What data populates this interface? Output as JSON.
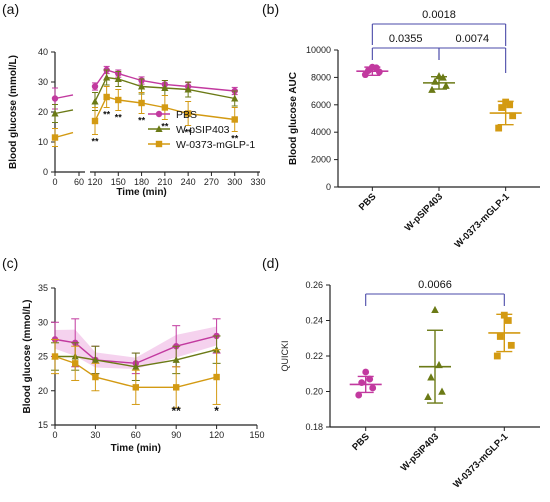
{
  "colors": {
    "pbs": "#c2399f",
    "pbs_shade": "#f2c3e8",
    "psip": "#6b7a16",
    "glp": "#d39a12",
    "bracket": "#4a4aa8",
    "axis": "#222222"
  },
  "panels": {
    "a": "(a)",
    "b": "(b)",
    "c": "(c)",
    "d": "(d)"
  },
  "chart_data": [
    {
      "id": "a",
      "type": "line",
      "title": "",
      "xlabel": "Time (min)",
      "ylabel": "Blood glucose (mmol/L)",
      "ylim": [
        0,
        40
      ],
      "yticks": [
        "0",
        "10",
        "20",
        "30",
        "40"
      ],
      "xticks_left": [
        "0",
        "60"
      ],
      "xticks_right": [
        "120",
        "150",
        "180",
        "210",
        "240",
        "270",
        "300",
        "330"
      ],
      "x_break": true,
      "series": [
        {
          "name": "PBS",
          "color": "#c2399f",
          "marker": "circle",
          "x": [
            0,
            120,
            135,
            150,
            180,
            210,
            240,
            300
          ],
          "y": [
            24.5,
            28.5,
            34,
            32.8,
            30.5,
            29.2,
            28.5,
            27
          ],
          "err": [
            3.5,
            1.2,
            1.2,
            1.2,
            1.2,
            1.3,
            1.3,
            1.2
          ]
        },
        {
          "name": "W-pSIP403",
          "color": "#6b7a16",
          "marker": "triangle",
          "x": [
            0,
            120,
            135,
            150,
            180,
            210,
            240,
            300
          ],
          "y": [
            19.5,
            23.5,
            31.5,
            31,
            28.5,
            28,
            27.5,
            24.5
          ],
          "err": [
            3,
            3,
            2.5,
            2.5,
            2.5,
            2.5,
            2.5,
            2.5
          ]
        },
        {
          "name": "W-0373-mGLP-1",
          "color": "#d39a12",
          "marker": "square",
          "x": [
            0,
            120,
            135,
            150,
            180,
            210,
            240,
            300
          ],
          "y": [
            11.5,
            17,
            25,
            24,
            23,
            21.5,
            19.5,
            17.5
          ],
          "err": [
            3,
            4.5,
            3.5,
            3.5,
            3.5,
            4,
            4,
            4
          ]
        }
      ],
      "annotations": [
        {
          "x": 120,
          "text": "**"
        },
        {
          "x": 135,
          "text": "**"
        },
        {
          "x": 150,
          "text": "**"
        },
        {
          "x": 180,
          "text": "**"
        },
        {
          "x": 210,
          "text": "**"
        },
        {
          "x": 240,
          "text": "**"
        },
        {
          "x": 300,
          "text": "**"
        }
      ]
    },
    {
      "id": "b",
      "type": "scatter",
      "title": "",
      "xlabel": "",
      "ylabel": "Blood glucose AUC",
      "ylim": [
        0,
        10000
      ],
      "yticks": [
        "0",
        "2000",
        "4000",
        "6000",
        "8000",
        "10000"
      ],
      "categories": [
        "PBS",
        "W-pSIP403",
        "W-0373-mGLP-1"
      ],
      "means": [
        8450,
        7600,
        5400
      ],
      "sd": [
        300,
        450,
        850
      ],
      "points": [
        [
          8200,
          8400,
          8500,
          8700,
          8750
        ],
        [
          7100,
          7400,
          7700,
          8000,
          8100
        ],
        [
          4300,
          5200,
          5800,
          6000,
          6200
        ]
      ],
      "brackets": [
        {
          "from": 0,
          "to": 2,
          "label": "0.0018"
        },
        {
          "from": 0,
          "to": 1,
          "label": "0.0355"
        },
        {
          "from": 1,
          "to": 2,
          "label": "0.0074"
        }
      ]
    },
    {
      "id": "c",
      "type": "line",
      "title": "",
      "xlabel": "Time (min)",
      "ylabel": "Blood glucose (mmol/L)",
      "ylim": [
        15,
        35
      ],
      "yticks": [
        "15",
        "20",
        "25",
        "30",
        "35"
      ],
      "xticks": [
        "0",
        "30",
        "60",
        "90",
        "120",
        "150"
      ],
      "series": [
        {
          "name": "PBS",
          "color": "#c2399f",
          "marker": "circle",
          "x": [
            0,
            15,
            30,
            60,
            90,
            120
          ],
          "y": [
            27.5,
            27,
            24.5,
            24,
            26.5,
            28
          ],
          "err": [
            2.5,
            3.5,
            2,
            1.5,
            3,
            2.5
          ]
        },
        {
          "name": "W-pSIP403",
          "color": "#6b7a16",
          "marker": "triangle",
          "x": [
            0,
            15,
            30,
            60,
            90,
            120
          ],
          "y": [
            25,
            25,
            24.5,
            23.5,
            24.5,
            26
          ],
          "err": [
            2,
            2,
            2,
            2,
            2,
            2
          ]
        },
        {
          "name": "W-0373-mGLP-1",
          "color": "#d39a12",
          "marker": "square",
          "x": [
            0,
            15,
            30,
            60,
            90,
            120
          ],
          "y": [
            25,
            24,
            22,
            20.5,
            20.5,
            22
          ],
          "err": [
            2.5,
            2.5,
            2,
            2.5,
            3,
            4
          ]
        }
      ],
      "annotations": [
        {
          "x": 90,
          "text": "**"
        },
        {
          "x": 120,
          "text": "*"
        }
      ]
    },
    {
      "id": "d",
      "type": "scatter",
      "title": "",
      "xlabel": "",
      "ylabel": "QUICKI",
      "ylim": [
        0.18,
        0.26
      ],
      "yticks": [
        "0.18",
        "0.20",
        "0.22",
        "0.24",
        "0.26"
      ],
      "categories": [
        "PBS",
        "W-pSIP403",
        "W-0373-mGLP-1"
      ],
      "means": [
        0.204,
        0.214,
        0.233
      ],
      "sd": [
        0.0045,
        0.0205,
        0.0105
      ],
      "points": [
        [
          0.198,
          0.202,
          0.205,
          0.207,
          0.211
        ],
        [
          0.197,
          0.2,
          0.208,
          0.215,
          0.246
        ],
        [
          0.22,
          0.226,
          0.231,
          0.24,
          0.243
        ]
      ],
      "brackets": [
        {
          "from": 0,
          "to": 2,
          "label": "0.0066"
        }
      ]
    }
  ]
}
